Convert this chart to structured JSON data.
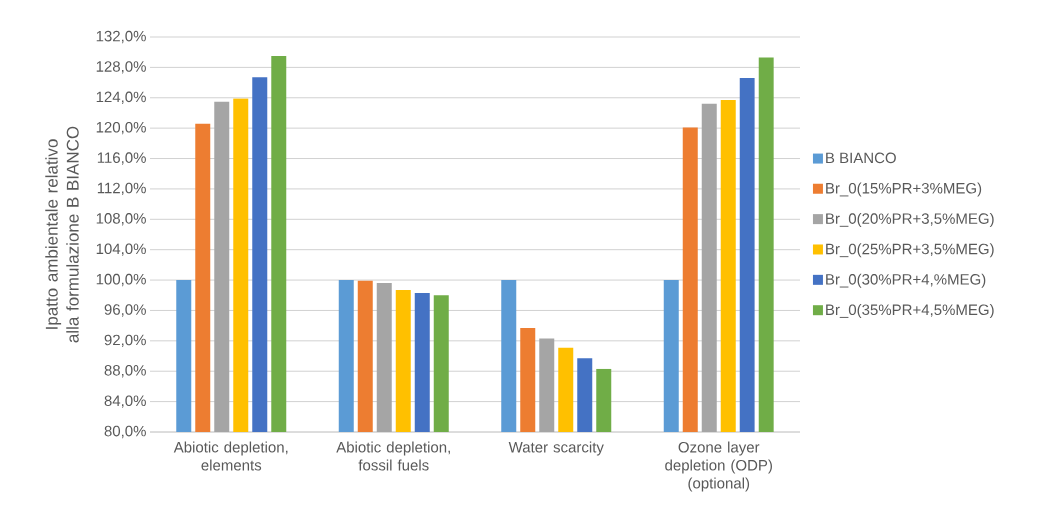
{
  "chart_data": {
    "type": "bar",
    "ylabel": "Ipatto ambientale relativo alla formulazione B BIANCO",
    "categories": [
      "Abiotic depletion, elements",
      "Abiotic depletion, fossil fuels",
      "Water scarcity",
      "Ozone layer depletion (ODP) (optional)"
    ],
    "series": [
      {
        "name": "B BIANCO",
        "color": "#5b9bd5",
        "values": [
          100.0,
          100.0,
          100.0,
          100.0
        ]
      },
      {
        "name": "Br_0(15%PR+3%MEG)",
        "color": "#ed7d31",
        "values": [
          120.6,
          99.9,
          93.7,
          120.1
        ]
      },
      {
        "name": "Br_0(20%PR+3,5%MEG)",
        "color": "#a5a5a5",
        "values": [
          123.5,
          99.6,
          92.3,
          123.2
        ]
      },
      {
        "name": "Br_0(25%PR+3,5%MEG)",
        "color": "#ffc000",
        "values": [
          123.9,
          98.7,
          91.1,
          123.7
        ]
      },
      {
        "name": "Br_0(30%PR+4,%MEG)",
        "color": "#4472c4",
        "values": [
          126.7,
          98.3,
          89.7,
          126.6
        ]
      },
      {
        "name": "Br_0(35%PR+4,5%MEG)",
        "color": "#70ad47",
        "values": [
          129.5,
          98.0,
          88.3,
          129.3
        ]
      }
    ],
    "ylim": [
      80,
      132
    ],
    "yticks": [
      {
        "value": 80,
        "label": "80,0%"
      },
      {
        "value": 84,
        "label": "84,0%"
      },
      {
        "value": 88,
        "label": "88,0%"
      },
      {
        "value": 92,
        "label": "92,0%"
      },
      {
        "value": 96,
        "label": "96,0%"
      },
      {
        "value": 100,
        "label": "100,0%"
      },
      {
        "value": 104,
        "label": "104,0%"
      },
      {
        "value": 108,
        "label": "108,0%"
      },
      {
        "value": 112,
        "label": "112,0%"
      },
      {
        "value": 116,
        "label": "116,0%"
      },
      {
        "value": 120,
        "label": "120,0%"
      },
      {
        "value": 124,
        "label": "124,0%"
      },
      {
        "value": 128,
        "label": "128,0%"
      },
      {
        "value": 132,
        "label": "132,0%"
      }
    ],
    "grid": "y",
    "legend": "right"
  }
}
